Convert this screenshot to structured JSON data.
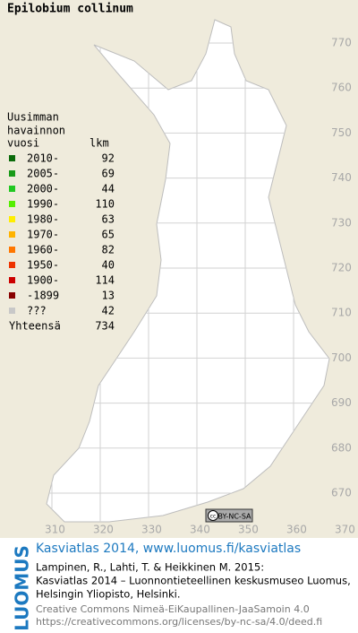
{
  "title": "Epilobium collinum",
  "legend": {
    "header": [
      "Uusimman",
      "havainnon",
      "vuosi",
      "lkm"
    ],
    "rows": [
      {
        "label": "2010-",
        "count": 92,
        "color": "#0b6b0b"
      },
      {
        "label": "2005-",
        "count": 69,
        "color": "#189a18"
      },
      {
        "label": "2000-",
        "count": 44,
        "color": "#22c822"
      },
      {
        "label": "1990-",
        "count": 110,
        "color": "#55ee00"
      },
      {
        "label": "1980-",
        "count": 63,
        "color": "#ffee00"
      },
      {
        "label": "1970-",
        "count": 65,
        "color": "#ffb300"
      },
      {
        "label": "1960-",
        "count": 82,
        "color": "#ff7700"
      },
      {
        "label": "1950-",
        "count": 40,
        "color": "#ee3300"
      },
      {
        "label": "1900-",
        "count": 114,
        "color": "#cc0000"
      },
      {
        "label": "-1899",
        "count": 13,
        "color": "#880000"
      },
      {
        "label": "???",
        "count": 42,
        "color": "#c8c8c8"
      }
    ],
    "total": {
      "label": "Yhteensä",
      "count": 734
    }
  },
  "grid": {
    "y_labels": [
      770,
      760,
      750,
      740,
      730,
      720,
      710,
      700,
      690,
      680,
      670
    ],
    "x_labels": [
      310,
      320,
      330,
      340,
      350,
      360,
      370
    ]
  },
  "license_badge": "BY-NC-SA",
  "footer": {
    "brand": "LUOMUS",
    "site": "Kasviatlas 2014, www.luomus.fi/kasviatlas",
    "citation": [
      "Lampinen, R., Lahti, T. & Heikkinen M. 2015:",
      "Kasviatlas 2014 – Luonnontieteellinen keskusmuseo Luomus,",
      "Helsingin Yliopisto, Helsinki."
    ],
    "license": [
      "Creative Commons Nimeä-EiKaupallinen-JaaSamoin 4.0",
      "https://creativecommons.org/licenses/by-nc-sa/4.0/deed.fi"
    ]
  }
}
